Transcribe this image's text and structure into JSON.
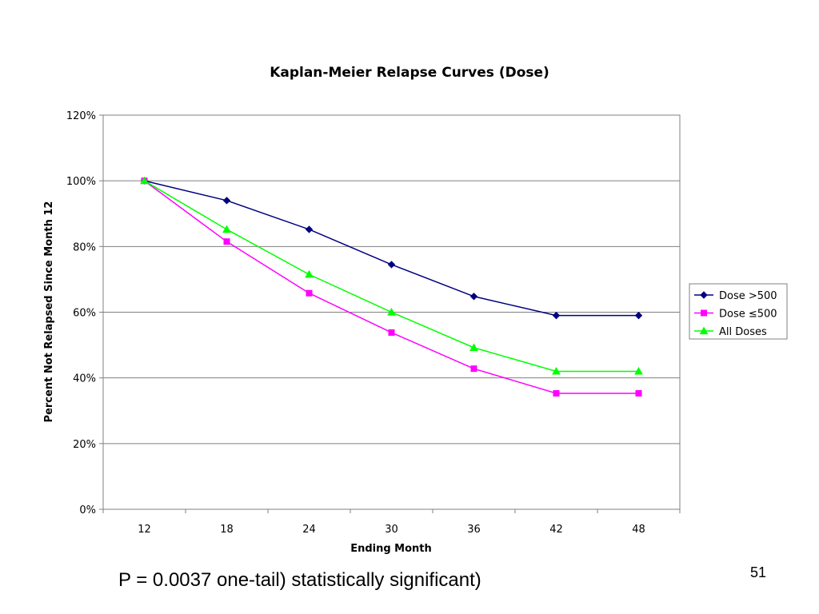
{
  "chart_data": {
    "type": "line",
    "title": "Kaplan-Meier Relapse Curves (Dose)",
    "xlabel": "Ending Month",
    "ylabel": "Percent Not Relapsed Since Month 12",
    "categories": [
      "12",
      "18",
      "24",
      "30",
      "36",
      "42",
      "48"
    ],
    "y_ticks": [
      "0%",
      "20%",
      "40%",
      "60%",
      "80%",
      "100%",
      "120%"
    ],
    "ylim": [
      0,
      120
    ],
    "grid": "horizontal",
    "legend_position": "right",
    "series": [
      {
        "name": "Dose >500",
        "color": "#000080",
        "marker": "diamond",
        "values": [
          100,
          94,
          85.2,
          74.5,
          64.8,
          59,
          59
        ]
      },
      {
        "name": "Dose ≤500",
        "color": "#ff00ff",
        "marker": "square",
        "values": [
          100,
          81.5,
          65.8,
          53.8,
          42.8,
          35.3,
          35.3
        ]
      },
      {
        "name": "All Doses",
        "color": "#00ff00",
        "marker": "triangle",
        "values": [
          100,
          85.2,
          71.5,
          60,
          49.2,
          42,
          42
        ]
      }
    ]
  },
  "footer": {
    "statement": "P = 0.0037 one-tail) statistically significant)",
    "page_number": "51"
  }
}
